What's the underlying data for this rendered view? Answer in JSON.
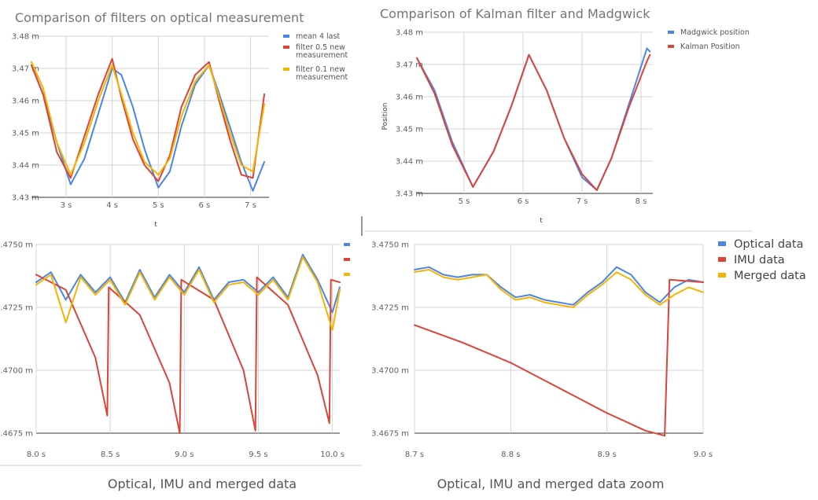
{
  "colors": {
    "blue": "#4a86e8",
    "red": "#db4437",
    "yellow": "#f4b400"
  },
  "chart_data": [
    {
      "id": "c1",
      "type": "line",
      "title": "Comparison of filters on optical measurement",
      "xlabel": "t",
      "ylabel": "",
      "xlim": [
        2.25,
        7.4
      ],
      "ylim": [
        3.43,
        3.48
      ],
      "xticks": [
        3,
        4,
        5,
        6,
        7
      ],
      "xtick_labels": [
        "3 s",
        "4 s",
        "5 s",
        "6 s",
        "7 s"
      ],
      "yticks": [
        3.43,
        3.44,
        3.45,
        3.46,
        3.47,
        3.48
      ],
      "ytick_labels": [
        "3.43 m",
        "3.44 m",
        "3.45 m",
        "3.46 m",
        "3.47 m",
        "3.48 m"
      ],
      "legend_position": "right",
      "series": [
        {
          "name": "mean 4 last",
          "color": "blue",
          "x": [
            2.25,
            2.5,
            2.8,
            3.1,
            3.4,
            3.7,
            4.0,
            4.2,
            4.45,
            4.7,
            5.0,
            5.25,
            5.5,
            5.8,
            6.1,
            6.3,
            6.55,
            6.8,
            7.05,
            7.3
          ],
          "y": [
            3.471,
            3.462,
            3.447,
            3.434,
            3.442,
            3.456,
            3.47,
            3.468,
            3.458,
            3.445,
            3.433,
            3.438,
            3.452,
            3.465,
            3.471,
            3.463,
            3.452,
            3.441,
            3.432,
            3.441
          ]
        },
        {
          "name": "filter 0.5 new\nmeasurement",
          "color": "red",
          "x": [
            2.25,
            2.5,
            2.8,
            3.1,
            3.4,
            3.7,
            4.0,
            4.2,
            4.45,
            4.7,
            5.0,
            5.25,
            5.5,
            5.8,
            6.1,
            6.3,
            6.55,
            6.8,
            7.05,
            7.3
          ],
          "y": [
            3.471,
            3.462,
            3.444,
            3.436,
            3.449,
            3.462,
            3.473,
            3.461,
            3.448,
            3.44,
            3.435,
            3.443,
            3.458,
            3.468,
            3.472,
            3.461,
            3.448,
            3.437,
            3.436,
            3.462
          ]
        },
        {
          "name": "filter 0.1 new\nmeasurement",
          "color": "yellow",
          "x": [
            2.25,
            2.5,
            2.8,
            3.1,
            3.4,
            3.7,
            4.0,
            4.2,
            4.45,
            4.7,
            5.0,
            5.25,
            5.5,
            5.8,
            6.1,
            6.3,
            6.55,
            6.8,
            7.05,
            7.3
          ],
          "y": [
            3.472,
            3.464,
            3.447,
            3.437,
            3.447,
            3.46,
            3.471,
            3.462,
            3.45,
            3.441,
            3.437,
            3.442,
            3.455,
            3.466,
            3.471,
            3.462,
            3.45,
            3.44,
            3.438,
            3.459
          ]
        }
      ]
    },
    {
      "id": "c2",
      "type": "line",
      "title": "Comparison of Kalman filter and Madgwick",
      "xlabel": "t",
      "ylabel": "Position",
      "xlim": [
        4.2,
        8.2
      ],
      "ylim": [
        3.43,
        3.48
      ],
      "xticks": [
        5,
        6,
        7,
        8
      ],
      "xtick_labels": [
        "5 s",
        "6 s",
        "7 s",
        "8 s"
      ],
      "yticks": [
        3.43,
        3.44,
        3.45,
        3.46,
        3.47,
        3.48
      ],
      "ytick_labels": [
        "3.43 m",
        "3.44 m",
        "3.45 m",
        "3.46 m",
        "3.47 m",
        "3.48 m"
      ],
      "legend_position": "right",
      "series": [
        {
          "name": "Madgwick position",
          "color": "blue",
          "x": [
            4.2,
            4.5,
            4.8,
            5.15,
            5.5,
            5.8,
            6.1,
            6.4,
            6.7,
            7.0,
            7.25,
            7.5,
            7.8,
            8.1,
            8.15
          ],
          "y": [
            3.472,
            3.462,
            3.446,
            3.432,
            3.443,
            3.457,
            3.473,
            3.462,
            3.447,
            3.435,
            3.431,
            3.441,
            3.458,
            3.475,
            3.474
          ]
        },
        {
          "name": "Kalman Position",
          "color": "red",
          "x": [
            4.2,
            4.5,
            4.8,
            5.15,
            5.5,
            5.8,
            6.1,
            6.4,
            6.7,
            7.0,
            7.25,
            7.5,
            7.8,
            8.1,
            8.15
          ],
          "y": [
            3.472,
            3.461,
            3.445,
            3.432,
            3.443,
            3.457,
            3.473,
            3.462,
            3.447,
            3.436,
            3.431,
            3.441,
            3.457,
            3.471,
            3.473
          ]
        }
      ]
    },
    {
      "id": "c3",
      "type": "line",
      "title": "Optical, IMU and merged data",
      "xlabel": "",
      "ylabel": "",
      "xlim": [
        8.0,
        10.05
      ],
      "ylim": [
        3.4675,
        3.475
      ],
      "xticks": [
        8.0,
        8.5,
        9.0,
        9.5,
        10.0
      ],
      "xtick_labels": [
        "8.0 s",
        "8.5 s",
        "9.0 s",
        "9.5 s",
        "10.0 s"
      ],
      "yticks": [
        3.4675,
        3.47,
        3.4725,
        3.475
      ],
      "ytick_labels": [
        "3.4675 m",
        "3.4700 m",
        "3.4725 m",
        "3.4750 m"
      ],
      "legend_position": "right",
      "series": [
        {
          "name": "",
          "color": "blue",
          "x": [
            8.0,
            8.1,
            8.2,
            8.3,
            8.4,
            8.5,
            8.6,
            8.7,
            8.8,
            8.9,
            9.0,
            9.1,
            9.2,
            9.3,
            9.4,
            9.5,
            9.6,
            9.7,
            9.8,
            9.9,
            10.0,
            10.05
          ],
          "y": [
            3.4735,
            3.4739,
            3.4728,
            3.4738,
            3.4731,
            3.4737,
            3.4727,
            3.474,
            3.4729,
            3.4738,
            3.4731,
            3.4741,
            3.4728,
            3.4735,
            3.4736,
            3.4731,
            3.4737,
            3.4729,
            3.4746,
            3.4736,
            3.4723,
            3.4733
          ]
        },
        {
          "name": "",
          "color": "red",
          "x": [
            8.0,
            8.2,
            8.4,
            8.48,
            8.49,
            8.7,
            8.9,
            8.97,
            8.98,
            9.2,
            9.4,
            9.48,
            9.49,
            9.7,
            9.9,
            9.98,
            9.99,
            10.05
          ],
          "y": [
            3.4738,
            3.4732,
            3.4705,
            3.4682,
            3.4733,
            3.4722,
            3.4695,
            3.4675,
            3.4736,
            3.4728,
            3.47,
            3.4676,
            3.4737,
            3.4726,
            3.4698,
            3.4679,
            3.4736,
            3.4735
          ]
        },
        {
          "name": "",
          "color": "yellow",
          "x": [
            8.0,
            8.1,
            8.2,
            8.3,
            8.4,
            8.5,
            8.6,
            8.7,
            8.8,
            8.9,
            9.0,
            9.1,
            9.2,
            9.3,
            9.4,
            9.5,
            9.6,
            9.7,
            9.8,
            9.9,
            10.0,
            10.05
          ],
          "y": [
            3.4734,
            3.4738,
            3.4719,
            3.4737,
            3.473,
            3.4736,
            3.4726,
            3.4739,
            3.4728,
            3.4737,
            3.473,
            3.474,
            3.4727,
            3.4734,
            3.4735,
            3.473,
            3.4736,
            3.4728,
            3.4745,
            3.4735,
            3.4716,
            3.4732
          ]
        }
      ]
    },
    {
      "id": "c4",
      "type": "line",
      "title": "Optical, IMU and merged data zoom",
      "xlabel": "",
      "ylabel": "",
      "xlim": [
        8.7,
        9.0
      ],
      "ylim": [
        3.4675,
        3.475
      ],
      "xticks": [
        8.7,
        8.8,
        8.9,
        9.0
      ],
      "xtick_labels": [
        "8.7 s",
        "8.8 s",
        "8.9 s",
        "9.0 s"
      ],
      "yticks": [
        3.4675,
        3.47,
        3.4725,
        3.475
      ],
      "ytick_labels": [
        "3.4675 m",
        "3.4700 m",
        "3.4725 m",
        "3.4750 m"
      ],
      "legend_position": "right",
      "series": [
        {
          "name": "Optical data",
          "color": "blue",
          "x": [
            8.7,
            8.715,
            8.73,
            8.745,
            8.76,
            8.775,
            8.79,
            8.805,
            8.82,
            8.835,
            8.85,
            8.865,
            8.88,
            8.895,
            8.91,
            8.925,
            8.94,
            8.955,
            8.97,
            8.985,
            9.0
          ],
          "y": [
            3.474,
            3.4741,
            3.4738,
            3.4737,
            3.4738,
            3.4738,
            3.4733,
            3.4729,
            3.473,
            3.4728,
            3.4727,
            3.4726,
            3.4731,
            3.4735,
            3.4741,
            3.4738,
            3.4731,
            3.4727,
            3.4733,
            3.4736,
            3.4735
          ]
        },
        {
          "name": "IMU data",
          "color": "red",
          "x": [
            8.7,
            8.75,
            8.8,
            8.85,
            8.9,
            8.94,
            8.96,
            8.965,
            9.0
          ],
          "y": [
            3.4718,
            3.4711,
            3.4703,
            3.4693,
            3.4683,
            3.4676,
            3.4674,
            3.4736,
            3.4735
          ]
        },
        {
          "name": "Merged data",
          "color": "yellow",
          "x": [
            8.7,
            8.715,
            8.73,
            8.745,
            8.76,
            8.775,
            8.79,
            8.805,
            8.82,
            8.835,
            8.85,
            8.865,
            8.88,
            8.895,
            8.91,
            8.925,
            8.94,
            8.955,
            8.97,
            8.985,
            9.0
          ],
          "y": [
            3.4739,
            3.474,
            3.4737,
            3.4736,
            3.4737,
            3.4738,
            3.4732,
            3.4728,
            3.4729,
            3.4727,
            3.4726,
            3.4725,
            3.473,
            3.4734,
            3.4739,
            3.4736,
            3.473,
            3.4726,
            3.473,
            3.4733,
            3.4731
          ]
        }
      ]
    }
  ]
}
